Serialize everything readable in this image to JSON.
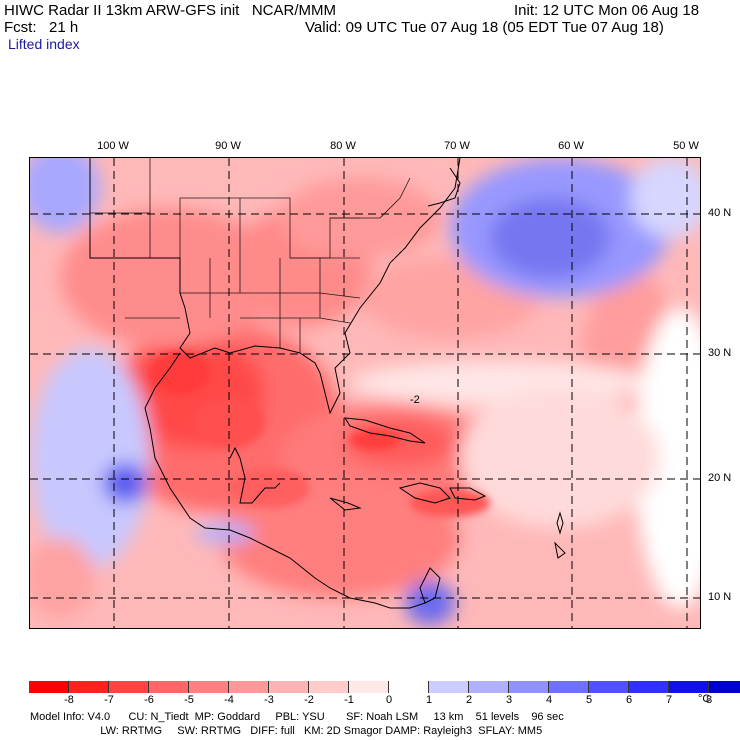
{
  "header": {
    "title_left": "HIWC Radar II 13km ARW-GFS init   NCAR/MMM",
    "init": "Init: 12 UTC Mon 06 Aug 18",
    "fcst": "Fcst:   21 h",
    "valid": "Valid: 09 UTC Tue 07 Aug 18 (05 EDT Tue 07 Aug 18)",
    "field": "Lifted index"
  },
  "longitudes": [
    "100 W",
    "90 W",
    "80 W",
    "70 W",
    "60 W",
    "50 W"
  ],
  "latitudes": [
    "40 N",
    "30 N",
    "20 N",
    "10 N"
  ],
  "contour_label": "-2",
  "colorbar": {
    "ticks": [
      "-8",
      "-7",
      "-6",
      "-5",
      "-4",
      "-3",
      "-2",
      "-1",
      "0",
      "1",
      "2",
      "3",
      "4",
      "5",
      "6",
      "7",
      "8"
    ],
    "unit": "°C",
    "colors": [
      "#ff0000",
      "#ff2020",
      "#ff4444",
      "#ff6666",
      "#ff8080",
      "#ff9999",
      "#ffb3b3",
      "#ffcccc",
      "#ffe8e8",
      "#ffffff",
      "#ccccff",
      "#b0b0ff",
      "#9090ff",
      "#7070ff",
      "#5050ff",
      "#3030ff",
      "#1010ee",
      "#0000cc"
    ]
  },
  "footer": {
    "line1": "Model Info: V4.0      CU: N_Tiedt  MP: Goddard     PBL: YSU       SF: Noah LSM     13 km    51 levels    96 sec",
    "line2": "                       LW: RRTMG     SW: RRTMG   DIFF: full   KM: 2D Smagor DAMP: Rayleigh3  SFLAY: MM5"
  }
}
